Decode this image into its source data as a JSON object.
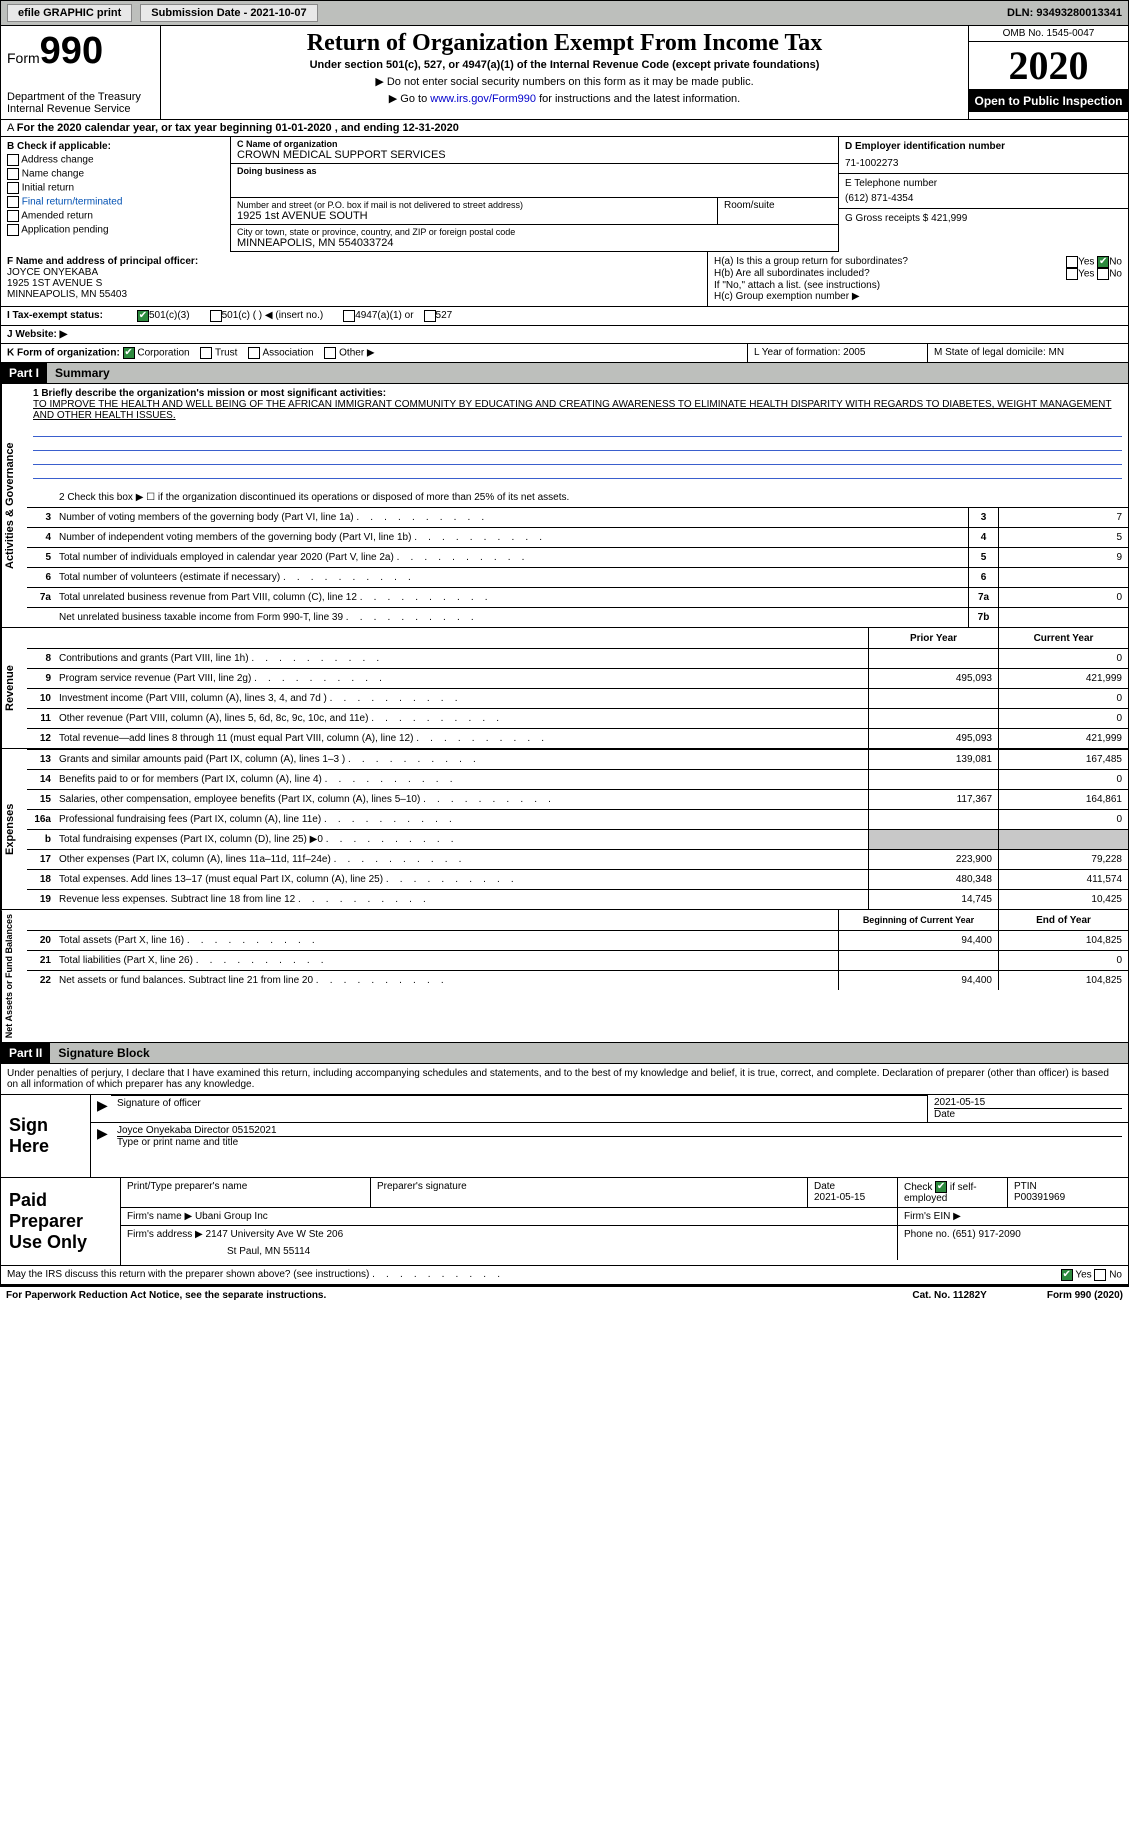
{
  "topbar": {
    "efile_label": "efile GRAPHIC print",
    "submission_label": "Submission Date - 2021-10-07",
    "dln_label": "DLN: 93493280013341"
  },
  "header": {
    "form_prefix": "Form",
    "form_number": "990",
    "dept": "Department of the Treasury\nInternal Revenue Service",
    "title": "Return of Organization Exempt From Income Tax",
    "subtitle": "Under section 501(c), 527, or 4947(a)(1) of the Internal Revenue Code (except private foundations)",
    "note1": "▶ Do not enter social security numbers on this form as it may be made public.",
    "note2_pre": "▶ Go to ",
    "note2_link": "www.irs.gov/Form990",
    "note2_post": " for instructions and the latest information.",
    "omb": "OMB No. 1545-0047",
    "year": "2020",
    "open": "Open to Public Inspection"
  },
  "period": "For the 2020 calendar year, or tax year beginning 01-01-2020    , and ending 12-31-2020",
  "section_b": {
    "heading": "B Check if applicable:",
    "items": [
      "Address change",
      "Name change",
      "Initial return",
      "Final return/terminated",
      "Amended return",
      "Application pending"
    ]
  },
  "section_c": {
    "name_lbl": "C Name of organization",
    "name": "CROWN MEDICAL SUPPORT SERVICES",
    "dba_lbl": "Doing business as",
    "addr_lbl": "Number and street (or P.O. box if mail is not delivered to street address)",
    "addr": "1925 1st AVENUE SOUTH",
    "room_lbl": "Room/suite",
    "city_lbl": "City or town, state or province, country, and ZIP or foreign postal code",
    "city": "MINNEAPOLIS, MN  554033724"
  },
  "section_d": {
    "lbl": "D Employer identification number",
    "val": "71-1002273"
  },
  "section_e": {
    "lbl": "E Telephone number",
    "val": "(612) 871-4354"
  },
  "section_g": {
    "lbl": "G Gross receipts $ 421,999"
  },
  "section_f": {
    "lbl": "F  Name and address of principal officer:",
    "name": "JOYCE ONYEKABA",
    "addr1": "1925 1ST AVENUE S",
    "addr2": "MINNEAPOLIS, MN  55403"
  },
  "section_h": {
    "ha": "H(a)  Is this a group return for subordinates?",
    "hb": "H(b)  Are all subordinates included?",
    "hb_note": "If \"No,\" attach a list. (see instructions)",
    "hc": "H(c)  Group exemption number ▶",
    "yes": "Yes",
    "no": "No"
  },
  "row_i": {
    "lbl": "I    Tax-exempt status:",
    "opts": [
      "501(c)(3)",
      "501(c) (  ) ◀ (insert no.)",
      "4947(a)(1) or",
      "527"
    ]
  },
  "row_j": "J    Website: ▶",
  "row_k": {
    "lbl": "K Form of organization:",
    "opts": [
      "Corporation",
      "Trust",
      "Association",
      "Other ▶"
    ]
  },
  "row_l": "L Year of formation: 2005",
  "row_m": "M State of legal domicile: MN",
  "part1": {
    "num": "Part I",
    "title": "Summary"
  },
  "mission": {
    "lbl": "1   Briefly describe the organization's mission or most significant activities:",
    "text": "TO IMPROVE THE HEALTH AND WELL BEING OF THE AFRICAN IMMIGRANT COMMUNITY BY EDUCATING AND CREATING AWARENESS TO ELIMINATE HEALTH DISPARITY WITH REGARDS TO DIABETES, WEIGHT MANAGEMENT AND OTHER HEALTH ISSUES."
  },
  "governance": {
    "label": "Activities & Governance",
    "line2": "2    Check this box ▶ ☐  if the organization discontinued its operations or disposed of more than 25% of its net assets.",
    "rows": [
      {
        "n": "3",
        "t": "Number of voting members of the governing body (Part VI, line 1a)",
        "box": "3",
        "v": "7"
      },
      {
        "n": "4",
        "t": "Number of independent voting members of the governing body (Part VI, line 1b)",
        "box": "4",
        "v": "5"
      },
      {
        "n": "5",
        "t": "Total number of individuals employed in calendar year 2020 (Part V, line 2a)",
        "box": "5",
        "v": "9"
      },
      {
        "n": "6",
        "t": "Total number of volunteers (estimate if necessary)",
        "box": "6",
        "v": ""
      },
      {
        "n": "7a",
        "t": "Total unrelated business revenue from Part VIII, column (C), line 12",
        "box": "7a",
        "v": "0"
      },
      {
        "n": "",
        "t": "Net unrelated business taxable income from Form 990-T, line 39",
        "box": "7b",
        "v": ""
      }
    ]
  },
  "col_headers": {
    "prior": "Prior Year",
    "current": "Current Year"
  },
  "revenue": {
    "label": "Revenue",
    "rows": [
      {
        "n": "8",
        "t": "Contributions and grants (Part VIII, line 1h)",
        "p": "",
        "c": "0"
      },
      {
        "n": "9",
        "t": "Program service revenue (Part VIII, line 2g)",
        "p": "495,093",
        "c": "421,999"
      },
      {
        "n": "10",
        "t": "Investment income (Part VIII, column (A), lines 3, 4, and 7d )",
        "p": "",
        "c": "0"
      },
      {
        "n": "11",
        "t": "Other revenue (Part VIII, column (A), lines 5, 6d, 8c, 9c, 10c, and 11e)",
        "p": "",
        "c": "0"
      },
      {
        "n": "12",
        "t": "Total revenue—add lines 8 through 11 (must equal Part VIII, column (A), line 12)",
        "p": "495,093",
        "c": "421,999"
      }
    ]
  },
  "expenses": {
    "label": "Expenses",
    "rows": [
      {
        "n": "13",
        "t": "Grants and similar amounts paid (Part IX, column (A), lines 1–3 )",
        "p": "139,081",
        "c": "167,485"
      },
      {
        "n": "14",
        "t": "Benefits paid to or for members (Part IX, column (A), line 4)",
        "p": "",
        "c": "0"
      },
      {
        "n": "15",
        "t": "Salaries, other compensation, employee benefits (Part IX, column (A), lines 5–10)",
        "p": "117,367",
        "c": "164,861"
      },
      {
        "n": "16a",
        "t": "Professional fundraising fees (Part IX, column (A), line 11e)",
        "p": "",
        "c": "0"
      },
      {
        "n": "b",
        "t": "Total fundraising expenses (Part IX, column (D), line 25) ▶0",
        "p": "GREY",
        "c": "GREY"
      },
      {
        "n": "17",
        "t": "Other expenses (Part IX, column (A), lines 11a–11d, 11f–24e)",
        "p": "223,900",
        "c": "79,228"
      },
      {
        "n": "18",
        "t": "Total expenses. Add lines 13–17 (must equal Part IX, column (A), line 25)",
        "p": "480,348",
        "c": "411,574"
      },
      {
        "n": "19",
        "t": "Revenue less expenses. Subtract line 18 from line 12",
        "p": "14,745",
        "c": "10,425"
      }
    ]
  },
  "netassets": {
    "label": "Net Assets or Fund Balances",
    "hdr_begin": "Beginning of Current Year",
    "hdr_end": "End of Year",
    "rows": [
      {
        "n": "20",
        "t": "Total assets (Part X, line 16)",
        "p": "94,400",
        "c": "104,825"
      },
      {
        "n": "21",
        "t": "Total liabilities (Part X, line 26)",
        "p": "",
        "c": "0"
      },
      {
        "n": "22",
        "t": "Net assets or fund balances. Subtract line 21 from line 20",
        "p": "94,400",
        "c": "104,825"
      }
    ]
  },
  "part2": {
    "num": "Part II",
    "title": "Signature Block"
  },
  "sig_decl": "Under penalties of perjury, I declare that I have examined this return, including accompanying schedules and statements, and to the best of my knowledge and belief, it is true, correct, and complete. Declaration of preparer (other than officer) is based on all information of which preparer has any knowledge.",
  "sign": {
    "label": "Sign Here",
    "sig_lbl": "Signature of officer",
    "date": "2021-05-15",
    "date_lbl": "Date",
    "name": "Joyce Onyekaba Director  05152021",
    "name_lbl": "Type or print name and title"
  },
  "prep": {
    "label": "Paid Preparer Use Only",
    "r1": {
      "c1": "Print/Type preparer's name",
      "c2": "Preparer's signature",
      "c3": "Date\n2021-05-15",
      "c4": "Check ☑ if self-employed",
      "c5": "PTIN\nP00391969"
    },
    "firm_lbl": "Firm's name   ▶ ",
    "firm": "Ubani Group Inc",
    "ein_lbl": "Firm's EIN ▶",
    "addr_lbl": "Firm's address ▶ ",
    "addr": "2147 University Ave W Ste 206",
    "city": "St Paul, MN  55114",
    "phone_lbl": "Phone no. (651) 917-2090"
  },
  "discuss": "May the IRS discuss this return with the preparer shown above? (see instructions)",
  "paperwork": "For Paperwork Reduction Act Notice, see the separate instructions.",
  "cat": "Cat. No. 11282Y",
  "form_foot": "Form 990 (2020)"
}
